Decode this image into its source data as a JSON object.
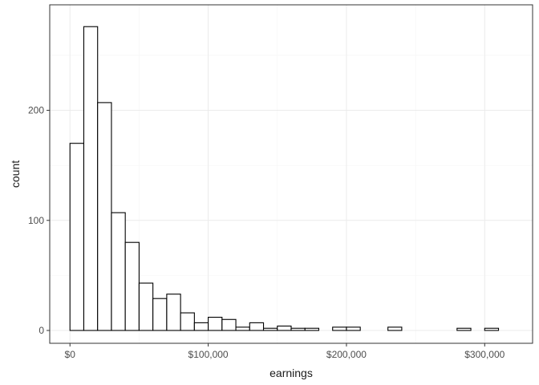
{
  "chart_data": {
    "type": "bar",
    "subtype": "histogram",
    "xlabel": "earnings",
    "ylabel": "count",
    "bin_width": 10000,
    "xlim": [
      -10000,
      330000
    ],
    "ylim": [
      0,
      290
    ],
    "x_ticks": [
      {
        "value": 0,
        "label": "$0"
      },
      {
        "value": 100000,
        "label": "$100,000"
      },
      {
        "value": 200000,
        "label": "$200,000"
      },
      {
        "value": 300000,
        "label": "$300,000"
      }
    ],
    "y_ticks": [
      {
        "value": 0,
        "label": "0"
      },
      {
        "value": 100,
        "label": "100"
      },
      {
        "value": 200,
        "label": "200"
      }
    ],
    "bins": [
      {
        "start": -10000,
        "count": 0
      },
      {
        "start": 0,
        "count": 170
      },
      {
        "start": 10000,
        "count": 276
      },
      {
        "start": 20000,
        "count": 207
      },
      {
        "start": 30000,
        "count": 107
      },
      {
        "start": 40000,
        "count": 80
      },
      {
        "start": 50000,
        "count": 43
      },
      {
        "start": 60000,
        "count": 29
      },
      {
        "start": 70000,
        "count": 33
      },
      {
        "start": 80000,
        "count": 16
      },
      {
        "start": 90000,
        "count": 7
      },
      {
        "start": 100000,
        "count": 12
      },
      {
        "start": 110000,
        "count": 10
      },
      {
        "start": 120000,
        "count": 3
      },
      {
        "start": 130000,
        "count": 7
      },
      {
        "start": 140000,
        "count": 2
      },
      {
        "start": 150000,
        "count": 4
      },
      {
        "start": 160000,
        "count": 2
      },
      {
        "start": 170000,
        "count": 2
      },
      {
        "start": 180000,
        "count": 0
      },
      {
        "start": 190000,
        "count": 3
      },
      {
        "start": 200000,
        "count": 3
      },
      {
        "start": 210000,
        "count": 0
      },
      {
        "start": 220000,
        "count": 0
      },
      {
        "start": 230000,
        "count": 3
      },
      {
        "start": 240000,
        "count": 0
      },
      {
        "start": 250000,
        "count": 0
      },
      {
        "start": 260000,
        "count": 0
      },
      {
        "start": 270000,
        "count": 0
      },
      {
        "start": 280000,
        "count": 2
      },
      {
        "start": 290000,
        "count": 0
      },
      {
        "start": 300000,
        "count": 2
      },
      {
        "start": 310000,
        "count": 0
      }
    ],
    "grid": true,
    "colors": {
      "bar_fill": "#ffffff",
      "bar_outline": "#000000",
      "panel_border": "#333333",
      "grid": "#ebebeb"
    }
  }
}
